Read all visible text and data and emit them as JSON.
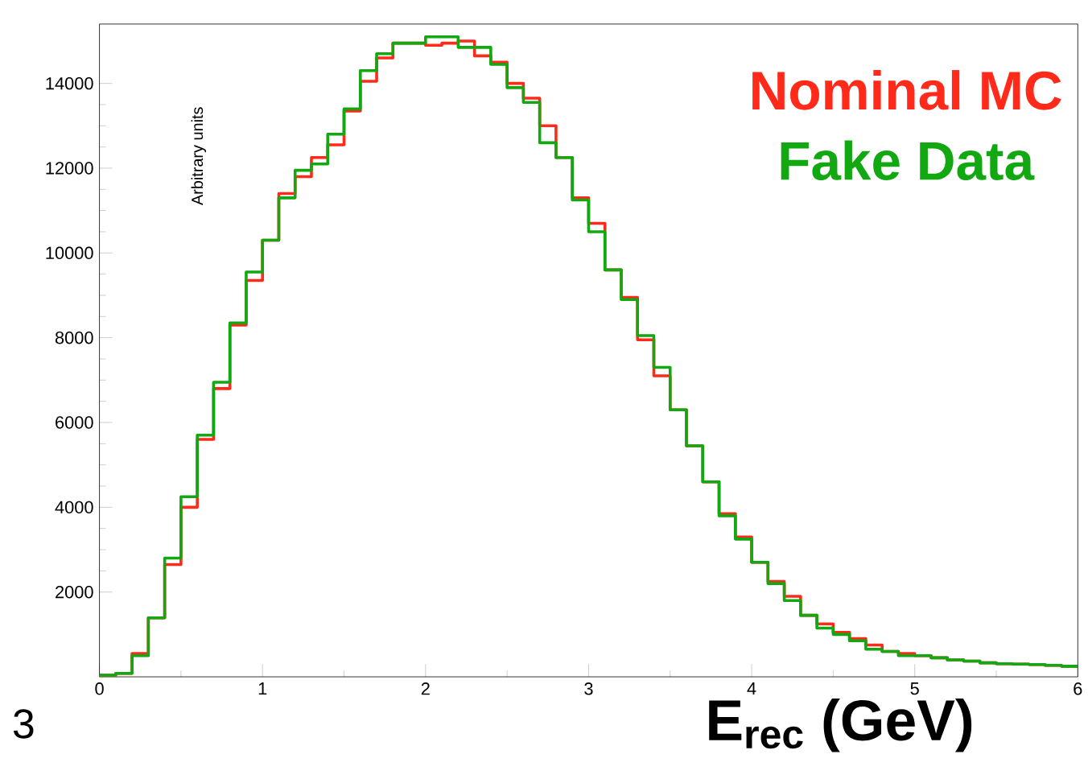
{
  "chart_data": {
    "type": "histogram",
    "xlabel": "E$_{rec}$ (GeV)",
    "ylabel": "Arbitrary units",
    "bins": [
      0,
      0.1,
      0.2,
      0.3,
      0.4,
      0.5,
      0.6,
      0.7,
      0.8,
      0.9,
      1.0,
      1.1,
      1.2,
      1.3,
      1.4,
      1.5,
      1.6,
      1.7,
      1.8,
      1.9,
      2.0,
      2.1,
      2.2,
      2.3,
      2.4,
      2.5,
      2.6,
      2.7,
      2.8,
      2.9,
      3.0,
      3.1,
      3.2,
      3.3,
      3.4,
      3.5,
      3.6,
      3.7,
      3.8,
      3.9,
      4.0,
      4.1,
      4.2,
      4.3,
      4.4,
      4.5,
      4.6,
      4.7,
      4.8,
      4.9,
      5.0,
      5.1,
      5.2,
      5.3,
      5.4,
      5.5,
      5.6,
      5.7,
      5.8,
      5.9,
      6.0
    ],
    "series": [
      {
        "name": "Nominal MC",
        "color": "#ff2a1a",
        "values": [
          40,
          80,
          550,
          1390,
          2650,
          4000,
          5600,
          6800,
          8300,
          9350,
          10300,
          11400,
          11800,
          12250,
          12550,
          13350,
          14050,
          14600,
          14950,
          14950,
          14900,
          14950,
          15000,
          14650,
          14500,
          14000,
          13650,
          13000,
          12250,
          11300,
          10700,
          9600,
          8950,
          7950,
          7100,
          6300,
          5450,
          4600,
          3850,
          3300,
          2700,
          2250,
          1900,
          1450,
          1250,
          1050,
          900,
          750,
          600,
          550,
          500,
          450,
          400,
          370,
          330,
          310,
          300,
          290,
          270,
          250
        ]
      },
      {
        "name": "Fake Data",
        "color": "#11a811",
        "values": [
          40,
          80,
          500,
          1390,
          2800,
          4250,
          5700,
          6950,
          8350,
          9550,
          10300,
          11300,
          11950,
          12100,
          12800,
          13400,
          14300,
          14700,
          14950,
          14950,
          15100,
          15100,
          14850,
          14850,
          14450,
          13900,
          13550,
          12600,
          12250,
          11250,
          10500,
          9600,
          8900,
          8050,
          7300,
          6300,
          5450,
          4600,
          3800,
          3250,
          2700,
          2200,
          1800,
          1450,
          1150,
          1000,
          850,
          650,
          600,
          500,
          500,
          450,
          400,
          370,
          330,
          310,
          300,
          290,
          270,
          250
        ]
      }
    ],
    "xlim": [
      0,
      6
    ],
    "ylim": [
      0,
      15400
    ],
    "xticks": [
      0,
      1,
      2,
      3,
      4,
      5,
      6
    ],
    "yticks": [
      2000,
      4000,
      6000,
      8000,
      10000,
      12000,
      14000
    ],
    "legend": "top right",
    "grid": false,
    "annotations": [
      "3"
    ]
  }
}
